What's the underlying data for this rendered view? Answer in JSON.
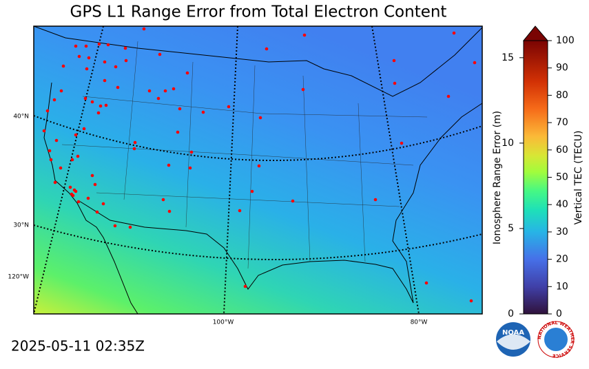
{
  "title": "GPS L1 Range Error from Total Electron Content",
  "timestamp": "2025-05-11 02:35Z",
  "map": {
    "lat_labels": [
      "40°N",
      "30°N"
    ],
    "lon_labels": [
      "120°W",
      "100°W",
      "80°W"
    ]
  },
  "colorbar": {
    "left_label": "Ionosphere Range Error (m)",
    "left_lim": [
      0,
      16
    ],
    "left_ticks": [
      0,
      5,
      10,
      15
    ],
    "right_label": "Vertical TEC (TECU)",
    "right_lim": [
      0,
      100
    ],
    "right_ticks": [
      0,
      10,
      20,
      30,
      40,
      50,
      60,
      70,
      80,
      90,
      100
    ]
  },
  "logos": {
    "noaa": "NOAA",
    "nws": "NATIONAL WEATHER SERVICE"
  }
}
